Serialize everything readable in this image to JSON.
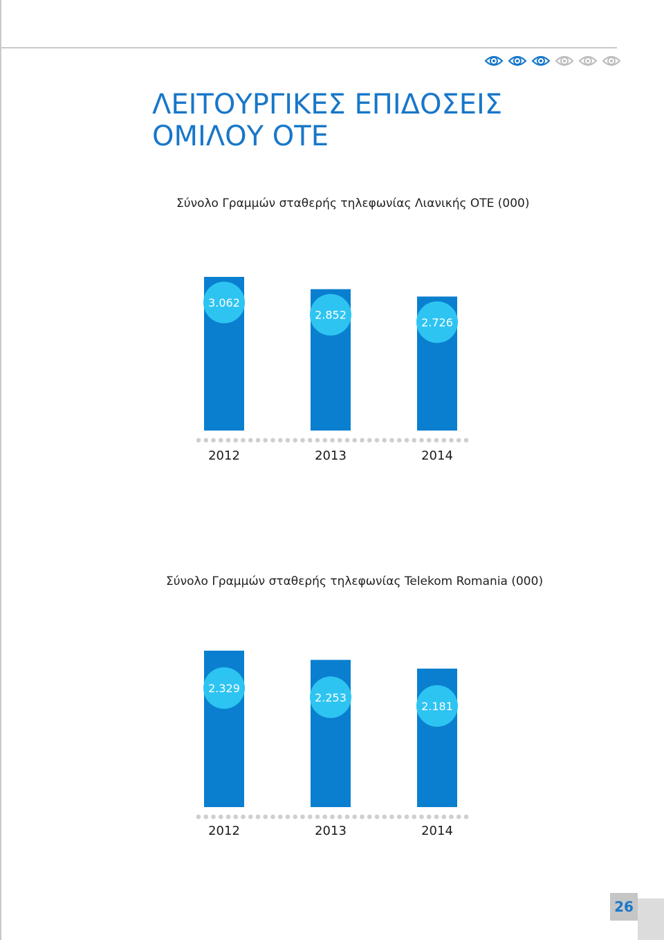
{
  "page": {
    "title_lines": [
      "ΛΕΙΤΟΥΡΓΙΚΕΣ ΕΠΙΔΟΣΕΙΣ",
      "ΟΜΙΛΟΥ ΟΤΕ"
    ],
    "page_number": "26",
    "eye_icons": [
      {
        "name": "eye-icon",
        "color": "#1877c9"
      },
      {
        "name": "eye-icon",
        "color": "#1877c9"
      },
      {
        "name": "eye-icon",
        "color": "#1877c9"
      },
      {
        "name": "eye-icon",
        "color": "#bdbdbd"
      },
      {
        "name": "eye-icon",
        "color": "#bdbdbd"
      },
      {
        "name": "eye-icon",
        "color": "#bdbdbd"
      }
    ],
    "colors": {
      "bar": "#0a7fcf",
      "bubble": "#2ec4f2",
      "title": "#1877c9",
      "dots": "#cfcfcf"
    }
  },
  "chart_data": [
    {
      "type": "bar",
      "title": "Σύνολο Γραμμών σταθερής τηλεφωνίας Λιανικής ΟΤΕ (000)",
      "categories": [
        "2012",
        "2013",
        "2014"
      ],
      "values": [
        3062,
        2852,
        2726
      ],
      "value_labels": [
        "3.062",
        "2.852",
        "2.726"
      ]
    },
    {
      "type": "bar",
      "title": "Σύνολο Γραμμών σταθερής τηλεφωνίας Telekom Romania (000)",
      "categories": [
        "2012",
        "2013",
        "2014"
      ],
      "values": [
        2329,
        2253,
        2181
      ],
      "value_labels": [
        "2.329",
        "2.253",
        "2.181"
      ]
    }
  ]
}
